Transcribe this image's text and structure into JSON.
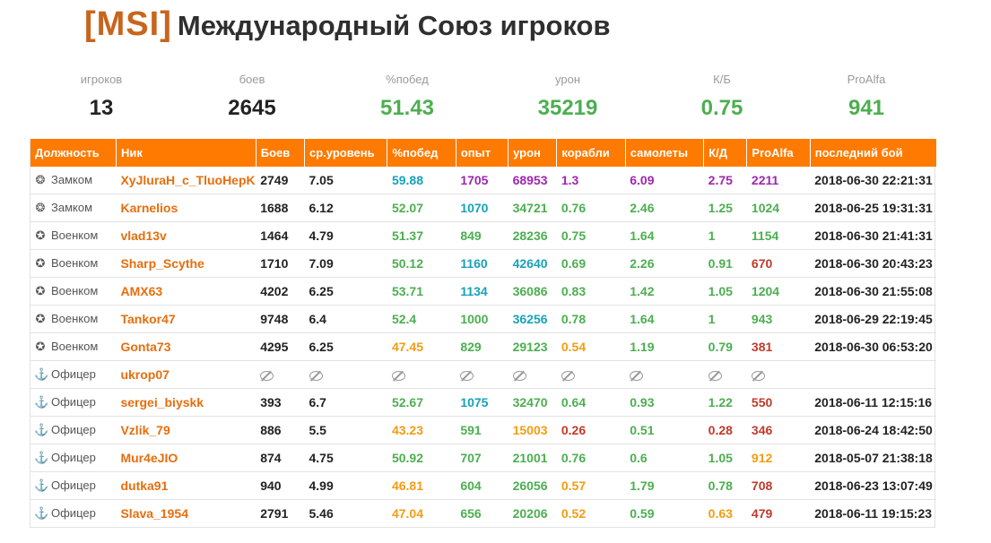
{
  "header": {
    "tag": "[MSI]",
    "title": "Международный Союз игроков"
  },
  "colors": {
    "accent": "#ff7a00",
    "tag": "#c8651d",
    "green": "#4caf50",
    "orange": "#f39c12",
    "red": "#c0392b",
    "purple": "#9c27b0",
    "teal": "#17a2b8",
    "black": "#222222"
  },
  "summary": [
    {
      "label": "игроков",
      "value": "13",
      "color": "#222222"
    },
    {
      "label": "боев",
      "value": "2645",
      "color": "#222222"
    },
    {
      "label": "%побед",
      "value": "51.43",
      "color": "#4caf50"
    },
    {
      "label": "урон",
      "value": "35219",
      "color": "#4caf50"
    },
    {
      "label": "К/Б",
      "value": "0.75",
      "color": "#4caf50"
    },
    {
      "label": "ProAlfa",
      "value": "941",
      "color": "#4caf50"
    }
  ],
  "table": {
    "columns": [
      "Должность",
      "Ник",
      "Боев",
      "ср.уровень",
      "%побед",
      "опыт",
      "урон",
      "корабли",
      "самолеты",
      "К/Д",
      "ProAlfa",
      "последний бой"
    ],
    "rows": [
      {
        "role": "Замком",
        "role_icon": "deputy-icon",
        "nick": "XyJluraH_c_TluoHepKu",
        "battles": "2749",
        "avg_tier": "7.05",
        "winrate": [
          "59.88",
          "t"
        ],
        "exp": [
          "1705",
          "p"
        ],
        "damage": [
          "68953",
          "p"
        ],
        "ships": [
          "1.3",
          "p"
        ],
        "planes": [
          "6.09",
          "p"
        ],
        "kd": [
          "2.75",
          "p"
        ],
        "proalfa": [
          "2211",
          "p"
        ],
        "last": "2018-06-30 22:21:31"
      },
      {
        "role": "Замком",
        "role_icon": "deputy-icon",
        "nick": "Karnelios",
        "battles": "1688",
        "avg_tier": "6.12",
        "winrate": [
          "52.07",
          "g"
        ],
        "exp": [
          "1070",
          "t"
        ],
        "damage": [
          "34721",
          "g"
        ],
        "ships": [
          "0.76",
          "g"
        ],
        "planes": [
          "2.46",
          "g"
        ],
        "kd": [
          "1.25",
          "g"
        ],
        "proalfa": [
          "1024",
          "g"
        ],
        "last": "2018-06-25 19:31:31"
      },
      {
        "role": "Военком",
        "role_icon": "commissar-icon",
        "nick": "vlad13v",
        "battles": "1464",
        "avg_tier": "4.79",
        "winrate": [
          "51.37",
          "g"
        ],
        "exp": [
          "849",
          "g"
        ],
        "damage": [
          "28236",
          "g"
        ],
        "ships": [
          "0.75",
          "g"
        ],
        "planes": [
          "1.64",
          "g"
        ],
        "kd": [
          "1",
          "g"
        ],
        "proalfa": [
          "1154",
          "g"
        ],
        "last": "2018-06-30 21:41:31"
      },
      {
        "role": "Военком",
        "role_icon": "commissar-icon",
        "nick": "Sharp_Scythe",
        "battles": "1710",
        "avg_tier": "7.09",
        "winrate": [
          "50.12",
          "g"
        ],
        "exp": [
          "1160",
          "t"
        ],
        "damage": [
          "42640",
          "t"
        ],
        "ships": [
          "0.69",
          "g"
        ],
        "planes": [
          "2.26",
          "g"
        ],
        "kd": [
          "0.91",
          "g"
        ],
        "proalfa": [
          "670",
          "r"
        ],
        "last": "2018-06-30 20:43:23"
      },
      {
        "role": "Военком",
        "role_icon": "commissar-icon",
        "nick": "AMX63",
        "battles": "4202",
        "avg_tier": "6.25",
        "winrate": [
          "53.71",
          "g"
        ],
        "exp": [
          "1134",
          "t"
        ],
        "damage": [
          "36086",
          "g"
        ],
        "ships": [
          "0.83",
          "g"
        ],
        "planes": [
          "1.42",
          "g"
        ],
        "kd": [
          "1.05",
          "g"
        ],
        "proalfa": [
          "1204",
          "g"
        ],
        "last": "2018-06-30 21:55:08"
      },
      {
        "role": "Военком",
        "role_icon": "commissar-icon",
        "nick": "Tankor47",
        "battles": "9748",
        "avg_tier": "6.4",
        "winrate": [
          "52.4",
          "g"
        ],
        "exp": [
          "1000",
          "g"
        ],
        "damage": [
          "36256",
          "t"
        ],
        "ships": [
          "0.78",
          "g"
        ],
        "planes": [
          "1.64",
          "g"
        ],
        "kd": [
          "1",
          "g"
        ],
        "proalfa": [
          "943",
          "g"
        ],
        "last": "2018-06-29 22:19:45"
      },
      {
        "role": "Военком",
        "role_icon": "commissar-icon",
        "nick": "Gonta73",
        "battles": "4295",
        "avg_tier": "6.25",
        "winrate": [
          "47.45",
          "o"
        ],
        "exp": [
          "829",
          "g"
        ],
        "damage": [
          "29123",
          "g"
        ],
        "ships": [
          "0.54",
          "o"
        ],
        "planes": [
          "1.19",
          "g"
        ],
        "kd": [
          "0.79",
          "g"
        ],
        "proalfa": [
          "381",
          "r"
        ],
        "last": "2018-06-30 06:53:20"
      },
      {
        "role": "Офицер",
        "role_icon": "anchor-icon",
        "nick": "ukrop07",
        "hidden": true
      },
      {
        "role": "Офицер",
        "role_icon": "anchor-icon",
        "nick": "sergei_biyskk",
        "battles": "393",
        "avg_tier": "6.7",
        "winrate": [
          "52.67",
          "g"
        ],
        "exp": [
          "1075",
          "t"
        ],
        "damage": [
          "32470",
          "g"
        ],
        "ships": [
          "0.64",
          "g"
        ],
        "planes": [
          "0.93",
          "g"
        ],
        "kd": [
          "1.22",
          "g"
        ],
        "proalfa": [
          "550",
          "r"
        ],
        "last": "2018-06-11 12:15:16"
      },
      {
        "role": "Офицер",
        "role_icon": "anchor-icon",
        "nick": "Vzlik_79",
        "battles": "886",
        "avg_tier": "5.5",
        "winrate": [
          "43.23",
          "o"
        ],
        "exp": [
          "591",
          "g"
        ],
        "damage": [
          "15003",
          "o"
        ],
        "ships": [
          "0.26",
          "r"
        ],
        "planes": [
          "0.51",
          "g"
        ],
        "kd": [
          "0.28",
          "r"
        ],
        "proalfa": [
          "346",
          "r"
        ],
        "last": "2018-06-24 18:42:50"
      },
      {
        "role": "Офицер",
        "role_icon": "anchor-icon",
        "nick": "Mur4eJIO",
        "battles": "874",
        "avg_tier": "4.75",
        "winrate": [
          "50.92",
          "g"
        ],
        "exp": [
          "707",
          "g"
        ],
        "damage": [
          "21001",
          "g"
        ],
        "ships": [
          "0.76",
          "g"
        ],
        "planes": [
          "0.6",
          "g"
        ],
        "kd": [
          "1.05",
          "g"
        ],
        "proalfa": [
          "912",
          "o"
        ],
        "last": "2018-05-07 21:38:18"
      },
      {
        "role": "Офицер",
        "role_icon": "anchor-icon",
        "nick": "dutka91",
        "battles": "940",
        "avg_tier": "4.99",
        "winrate": [
          "46.81",
          "o"
        ],
        "exp": [
          "604",
          "g"
        ],
        "damage": [
          "26056",
          "g"
        ],
        "ships": [
          "0.57",
          "o"
        ],
        "planes": [
          "1.79",
          "g"
        ],
        "kd": [
          "0.78",
          "g"
        ],
        "proalfa": [
          "708",
          "r"
        ],
        "last": "2018-06-23 13:07:49"
      },
      {
        "role": "Офицер",
        "role_icon": "anchor-icon",
        "nick": "Slava_1954",
        "battles": "2791",
        "avg_tier": "5.46",
        "winrate": [
          "47.04",
          "o"
        ],
        "exp": [
          "656",
          "g"
        ],
        "damage": [
          "20206",
          "g"
        ],
        "ships": [
          "0.52",
          "o"
        ],
        "planes": [
          "0.59",
          "g"
        ],
        "kd": [
          "0.63",
          "o"
        ],
        "proalfa": [
          "479",
          "r"
        ],
        "last": "2018-06-11 19:15:23"
      }
    ]
  }
}
